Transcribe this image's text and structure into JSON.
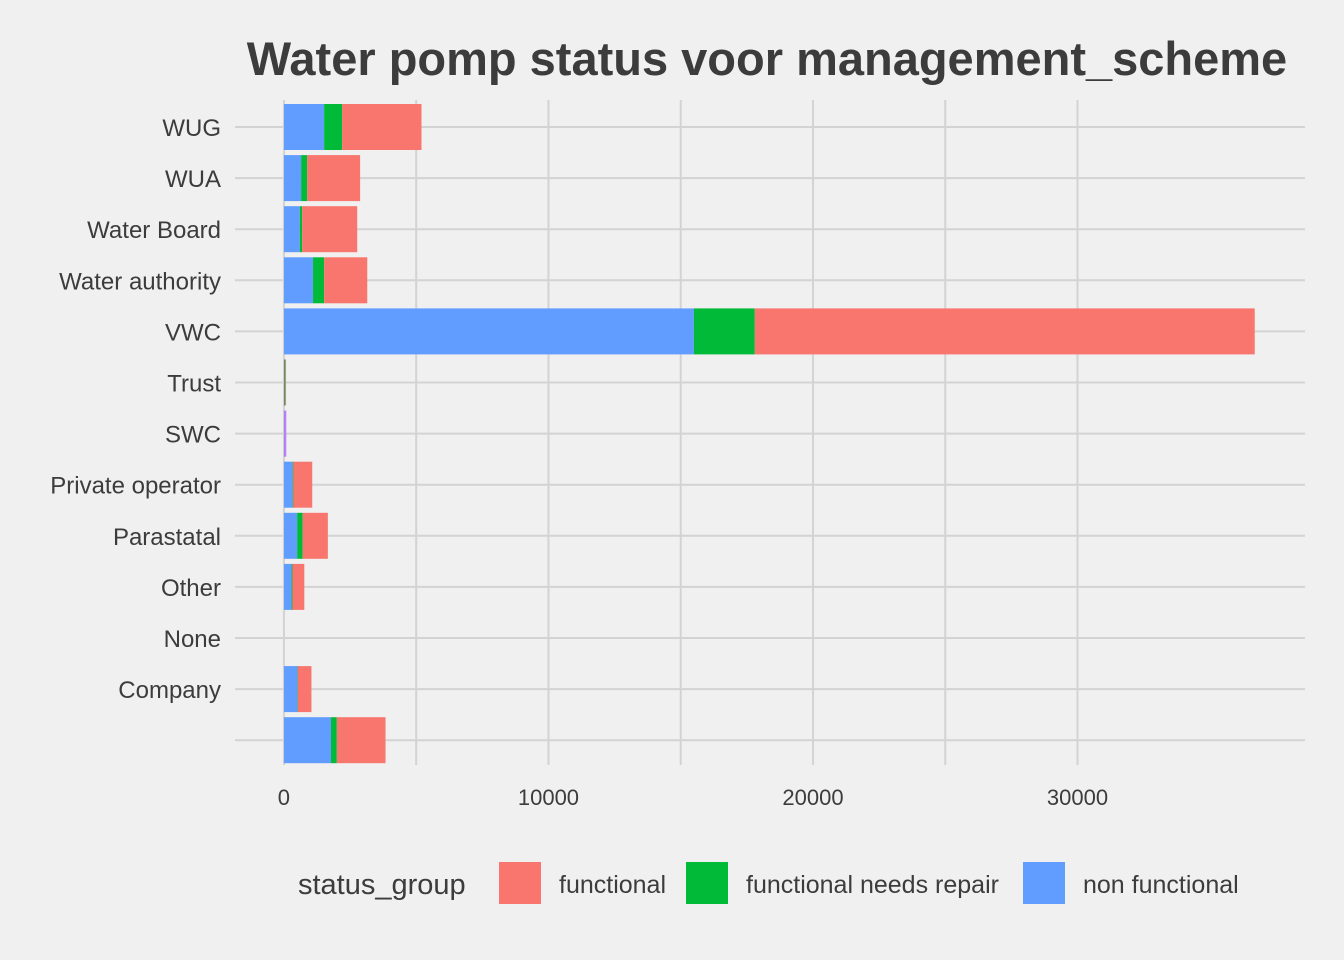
{
  "chart_data": {
    "type": "bar",
    "orientation": "horizontal",
    "stacked": true,
    "title": "Water pomp status voor management_scheme",
    "xlabel": "",
    "ylabel": "",
    "categories": [
      "WUG",
      "WUA",
      "Water Board",
      "Water authority",
      "VWC",
      "Trust",
      "SWC",
      "Private operator",
      "Parastatal",
      "Other",
      "None",
      "Company",
      ""
    ],
    "series": [
      {
        "name": "non functional",
        "color": "#619cff",
        "values": [
          1520,
          650,
          600,
          1100,
          15500,
          12,
          8,
          330,
          500,
          290,
          0,
          510,
          1780
        ]
      },
      {
        "name": "functional needs repair",
        "color": "#00ba38",
        "values": [
          680,
          230,
          90,
          420,
          2300,
          30,
          2,
          20,
          210,
          30,
          0,
          10,
          220
        ]
      },
      {
        "name": "functional",
        "color": "#f8766d",
        "values": [
          3000,
          2000,
          2080,
          1630,
          18900,
          30,
          0,
          720,
          950,
          450,
          0,
          520,
          1840
        ]
      }
    ],
    "extra_segments": [
      {
        "category": "SWC",
        "color": "#c77cff",
        "value": 80
      }
    ],
    "xlim": [
      -1850,
      38600
    ],
    "xticks": [
      0,
      10000,
      20000,
      30000
    ],
    "xtick_labels": [
      "0",
      "10000",
      "20000",
      "30000"
    ],
    "grid": true,
    "legend": {
      "title": "status_group",
      "position": "bottom",
      "entries": [
        {
          "label": "functional",
          "color": "#f8766d"
        },
        {
          "label": "functional needs repair",
          "color": "#00ba38"
        },
        {
          "label": "non functional",
          "color": "#619cff"
        }
      ]
    }
  }
}
